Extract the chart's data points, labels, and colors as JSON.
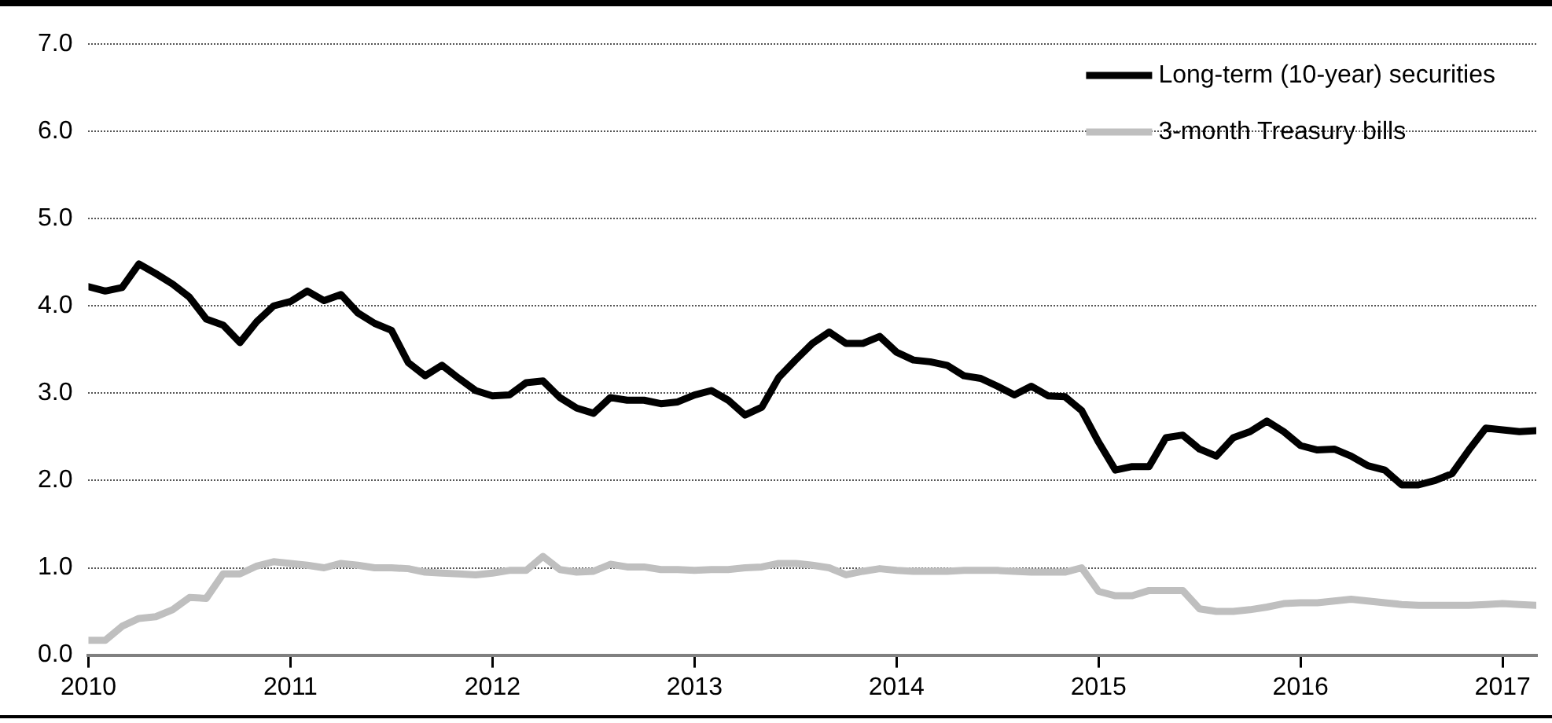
{
  "chart_data": {
    "type": "line",
    "x": [
      "2010-01",
      "2010-02",
      "2010-03",
      "2010-04",
      "2010-05",
      "2010-06",
      "2010-07",
      "2010-08",
      "2010-09",
      "2010-10",
      "2010-11",
      "2010-12",
      "2011-01",
      "2011-02",
      "2011-03",
      "2011-04",
      "2011-05",
      "2011-06",
      "2011-07",
      "2011-08",
      "2011-09",
      "2011-10",
      "2011-11",
      "2011-12",
      "2012-01",
      "2012-02",
      "2012-03",
      "2012-04",
      "2012-05",
      "2012-06",
      "2012-07",
      "2012-08",
      "2012-09",
      "2012-10",
      "2012-11",
      "2012-12",
      "2013-01",
      "2013-02",
      "2013-03",
      "2013-04",
      "2013-05",
      "2013-06",
      "2013-07",
      "2013-08",
      "2013-09",
      "2013-10",
      "2013-11",
      "2013-12",
      "2014-01",
      "2014-02",
      "2014-03",
      "2014-04",
      "2014-05",
      "2014-06",
      "2014-07",
      "2014-08",
      "2014-09",
      "2014-10",
      "2014-11",
      "2014-12",
      "2015-01",
      "2015-02",
      "2015-03",
      "2015-04",
      "2015-05",
      "2015-06",
      "2015-07",
      "2015-08",
      "2015-09",
      "2015-10",
      "2015-11",
      "2015-12",
      "2016-01",
      "2016-02",
      "2016-03",
      "2016-04",
      "2016-05",
      "2016-06",
      "2016-07",
      "2016-08",
      "2016-09",
      "2016-10",
      "2016-11",
      "2016-12",
      "2017-01",
      "2017-02",
      "2017-03"
    ],
    "series": [
      {
        "name": "Long-term (10-year) securities",
        "color": "#000000",
        "values": [
          4.22,
          4.17,
          4.21,
          4.48,
          4.37,
          4.25,
          4.1,
          3.85,
          3.78,
          3.58,
          3.82,
          4.0,
          4.05,
          4.17,
          4.06,
          4.13,
          3.92,
          3.8,
          3.72,
          3.35,
          3.2,
          3.32,
          3.17,
          3.03,
          2.97,
          2.98,
          3.12,
          3.14,
          2.95,
          2.83,
          2.77,
          2.95,
          2.92,
          2.92,
          2.88,
          2.9,
          2.98,
          3.03,
          2.92,
          2.75,
          2.84,
          3.18,
          3.38,
          3.57,
          3.7,
          3.57,
          3.57,
          3.65,
          3.47,
          3.38,
          3.36,
          3.32,
          3.2,
          3.17,
          3.08,
          2.98,
          3.08,
          2.97,
          2.96,
          2.8,
          2.44,
          2.12,
          2.16,
          2.16,
          2.49,
          2.52,
          2.36,
          2.28,
          2.49,
          2.56,
          2.68,
          2.56,
          2.4,
          2.35,
          2.36,
          2.28,
          2.17,
          2.12,
          1.95,
          1.95,
          2.0,
          2.08,
          2.35,
          2.6,
          2.58,
          2.56,
          2.57
        ]
      },
      {
        "name": "3-month Treasury bills",
        "color": "#bfbfbf",
        "values": [
          0.17,
          0.17,
          0.33,
          0.42,
          0.44,
          0.52,
          0.66,
          0.65,
          0.93,
          0.93,
          1.02,
          1.07,
          1.05,
          1.03,
          1.0,
          1.05,
          1.03,
          1.0,
          1.0,
          0.99,
          0.95,
          0.94,
          0.93,
          0.92,
          0.94,
          0.97,
          0.97,
          1.13,
          0.98,
          0.95,
          0.96,
          1.04,
          1.01,
          1.01,
          0.98,
          0.98,
          0.97,
          0.98,
          0.98,
          1.0,
          1.01,
          1.05,
          1.05,
          1.03,
          1.0,
          0.92,
          0.96,
          0.99,
          0.97,
          0.96,
          0.96,
          0.96,
          0.97,
          0.97,
          0.97,
          0.96,
          0.95,
          0.95,
          0.95,
          1.0,
          0.73,
          0.68,
          0.68,
          0.74,
          0.74,
          0.74,
          0.53,
          0.5,
          0.5,
          0.52,
          0.55,
          0.59,
          0.6,
          0.6,
          0.62,
          0.64,
          0.62,
          0.6,
          0.58,
          0.57,
          0.57,
          0.57,
          0.57,
          0.58,
          0.59,
          0.58,
          0.57
        ]
      }
    ],
    "xlim": [
      "2010-01",
      "2017-03"
    ],
    "xticks": [
      "2010",
      "2011",
      "2012",
      "2013",
      "2014",
      "2015",
      "2016",
      "2017"
    ],
    "ylim": [
      0,
      7
    ],
    "yticks": [
      {
        "value": 0,
        "label": "0.0"
      },
      {
        "value": 1,
        "label": "1.0"
      },
      {
        "value": 2,
        "label": "2.0"
      },
      {
        "value": 3,
        "label": "3.0"
      },
      {
        "value": 4,
        "label": "4.0"
      },
      {
        "value": 5,
        "label": "5.0"
      },
      {
        "value": 6,
        "label": "6.0"
      },
      {
        "value": 7,
        "label": "7.0"
      }
    ],
    "grid": "y",
    "legend": "top right",
    "marker": "none",
    "line_style": "solid"
  }
}
